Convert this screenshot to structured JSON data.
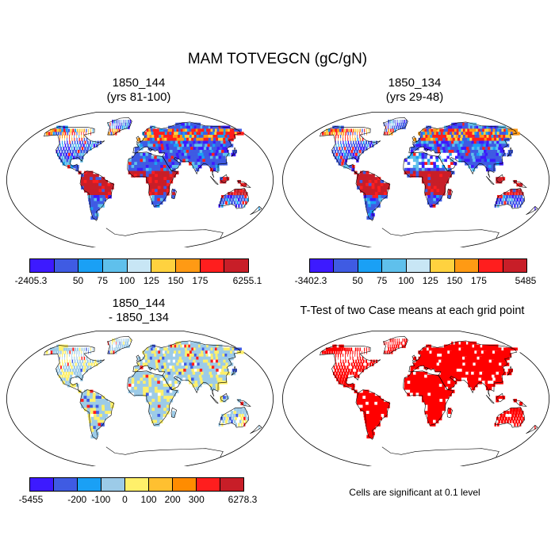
{
  "figure": {
    "title": "MAM TOTVEGCN (gC/gN)"
  },
  "panels": [
    {
      "title_line1": "1850_144",
      "title_line2": "(yrs 81-100)",
      "colorbar": {
        "colors": [
          "#3d1aff",
          "#3f5be3",
          "#1aa0f5",
          "#5fc0ec",
          "#c8e6f5",
          "#ffd23f",
          "#ff9a14",
          "#ff1e1e",
          "#c81e28"
        ],
        "labels": [
          "-2405.3",
          "50",
          "75",
          "100",
          "125",
          "150",
          "175",
          "6255.1"
        ]
      }
    },
    {
      "title_line1": "1850_134",
      "title_line2": "(yrs 29-48)",
      "colorbar": {
        "colors": [
          "#3d1aff",
          "#3f5be3",
          "#1aa0f5",
          "#5fc0ec",
          "#c8e6f5",
          "#ffd23f",
          "#ff9a14",
          "#ff1e1e",
          "#c81e28"
        ],
        "labels": [
          "-3402.3",
          "50",
          "75",
          "100",
          "125",
          "150",
          "175",
          "5485"
        ]
      }
    },
    {
      "title_line1": "1850_144",
      "title_line2": "- 1850_134",
      "colorbar": {
        "colors": [
          "#3d1aff",
          "#3f5be3",
          "#1aa0f5",
          "#9ccbe8",
          "#fff06a",
          "#ffc030",
          "#ff8c00",
          "#ff1e1e",
          "#c81e28"
        ],
        "labels": [
          "-5455",
          "-200",
          "-100",
          "0",
          "100",
          "200",
          "300",
          "6278.3"
        ]
      }
    },
    {
      "title_line1": "T-Test of two Case means at each grid point",
      "note": "Cells are significant at 0.1 level"
    }
  ]
}
